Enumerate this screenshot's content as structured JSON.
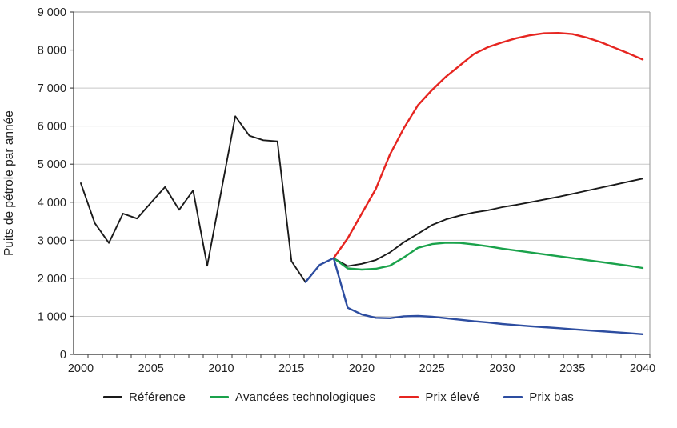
{
  "chart_data": {
    "type": "line",
    "title": "",
    "ylabel": "Puits de pétrole par année",
    "xlabel": "",
    "ylim": [
      0,
      9000
    ],
    "xlim": [
      2000,
      2040
    ],
    "grid": "horizontal",
    "legend_position": "bottom",
    "y_ticks": [
      {
        "value": 0,
        "label": "0"
      },
      {
        "value": 1000,
        "label": "1 000"
      },
      {
        "value": 2000,
        "label": "2 000"
      },
      {
        "value": 3000,
        "label": "3 000"
      },
      {
        "value": 4000,
        "label": "4 000"
      },
      {
        "value": 5000,
        "label": "5 000"
      },
      {
        "value": 6000,
        "label": "6 000"
      },
      {
        "value": 7000,
        "label": "7 000"
      },
      {
        "value": 8000,
        "label": "8 000"
      },
      {
        "value": 9000,
        "label": "9 000"
      }
    ],
    "x_ticks": [
      {
        "value": 2000,
        "label": "2000"
      },
      {
        "value": 2005,
        "label": "2005"
      },
      {
        "value": 2010,
        "label": "2010"
      },
      {
        "value": 2015,
        "label": "2015"
      },
      {
        "value": 2020,
        "label": "2020"
      },
      {
        "value": 2025,
        "label": "2025"
      },
      {
        "value": 2030,
        "label": "2030"
      },
      {
        "value": 2035,
        "label": "2035"
      },
      {
        "value": 2040,
        "label": "2040"
      }
    ],
    "series": [
      {
        "id": "reference",
        "name": "Référence",
        "color": "#1a1a1a",
        "line_width": 1.9,
        "start_year": 2000,
        "values": [
          4500,
          3450,
          2930,
          3700,
          3570,
          3990,
          4400,
          3800,
          4310,
          2330,
          4290,
          6260,
          5750,
          5630,
          5600,
          2450,
          1900,
          2350,
          2530,
          2320,
          2380,
          2480,
          2680,
          2950,
          3170,
          3400,
          3550,
          3650,
          3730,
          3790,
          3870,
          3930,
          4000,
          4070,
          4140,
          4220,
          4300,
          4380,
          4460,
          4540,
          4620
        ]
      },
      {
        "id": "avancees-technologiques",
        "name": "Avancées technologiques",
        "color": "#1aa24b",
        "line_width": 2.4,
        "start_year": 2018,
        "values": [
          2530,
          2260,
          2230,
          2250,
          2330,
          2550,
          2800,
          2900,
          2935,
          2930,
          2890,
          2840,
          2780,
          2730,
          2680,
          2630,
          2580,
          2530,
          2480,
          2430,
          2380,
          2330,
          2270
        ]
      },
      {
        "id": "prix-eleve",
        "name": "Prix élevé",
        "color": "#e62520",
        "line_width": 2.4,
        "start_year": 2018,
        "values": [
          2530,
          3050,
          3700,
          4350,
          5250,
          5950,
          6550,
          6950,
          7300,
          7600,
          7900,
          8080,
          8200,
          8310,
          8390,
          8440,
          8450,
          8420,
          8330,
          8210,
          8060,
          7910,
          7750
        ]
      },
      {
        "id": "prix-bas",
        "name": "Prix bas",
        "color": "#2d4da0",
        "line_width": 2.4,
        "start_year": 2016,
        "values": [
          1900,
          2350,
          2530,
          1225,
          1050,
          960,
          950,
          1000,
          1010,
          990,
          950,
          910,
          870,
          840,
          800,
          770,
          740,
          715,
          690,
          660,
          635,
          610,
          585,
          560,
          530
        ]
      }
    ]
  },
  "colors": {
    "gridline": "#c8c8c8",
    "frame": "#a6a6a6",
    "axis": "#4d4d4d",
    "tick": "#4d4d4d",
    "text": "#1f1f1f",
    "background": "#ffffff"
  }
}
